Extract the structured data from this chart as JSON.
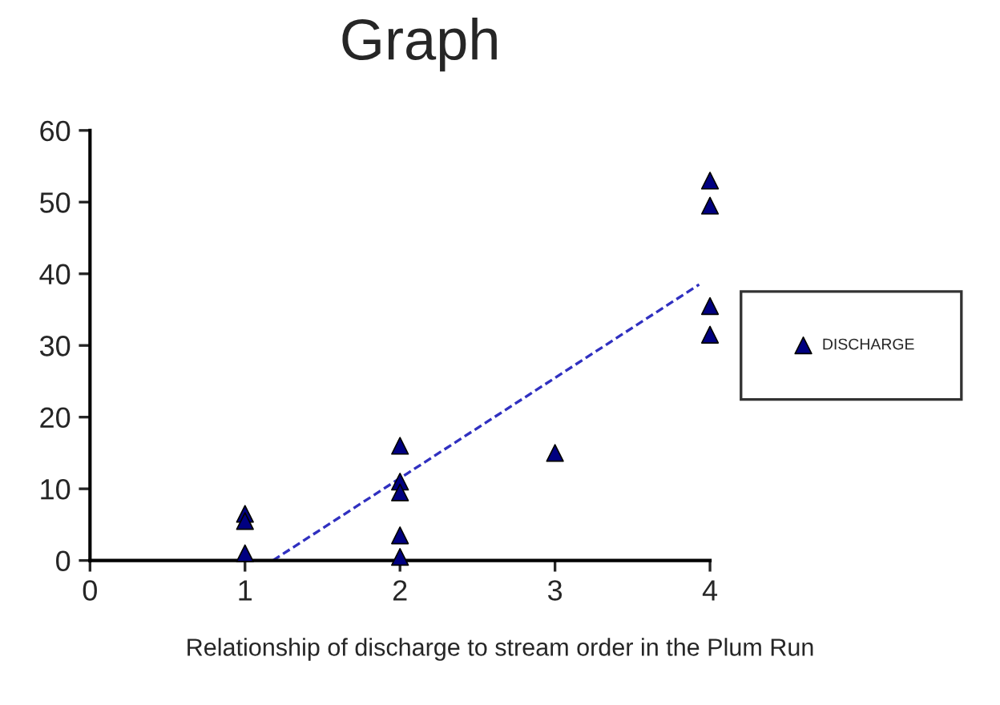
{
  "chart_data": {
    "type": "scatter",
    "title": "Graph",
    "xlabel": "Relationship of discharge to stream order in the Plum Run",
    "xlim": [
      0,
      4
    ],
    "xticks": [
      0,
      1,
      2,
      3,
      4
    ],
    "ylim": [
      0,
      60
    ],
    "yticks": [
      0,
      10,
      20,
      30,
      40,
      50,
      60
    ],
    "grid": false,
    "legend": "right",
    "series": [
      {
        "name": "DISCHARGE",
        "marker": "triangle",
        "color": "#000080",
        "x": [
          1,
          1,
          1,
          2,
          2,
          2,
          2,
          2,
          3,
          4,
          4,
          4,
          4
        ],
        "values": [
          6.5,
          5.5,
          1,
          16,
          11,
          9.5,
          3.5,
          0.5,
          15,
          53,
          49.5,
          35.5,
          31.5
        ]
      },
      {
        "type": "line",
        "color": "#3030c0",
        "line_style": "dashed",
        "x": [
          1.18,
          3.93
        ],
        "values": [
          0,
          38.5
        ]
      }
    ]
  }
}
